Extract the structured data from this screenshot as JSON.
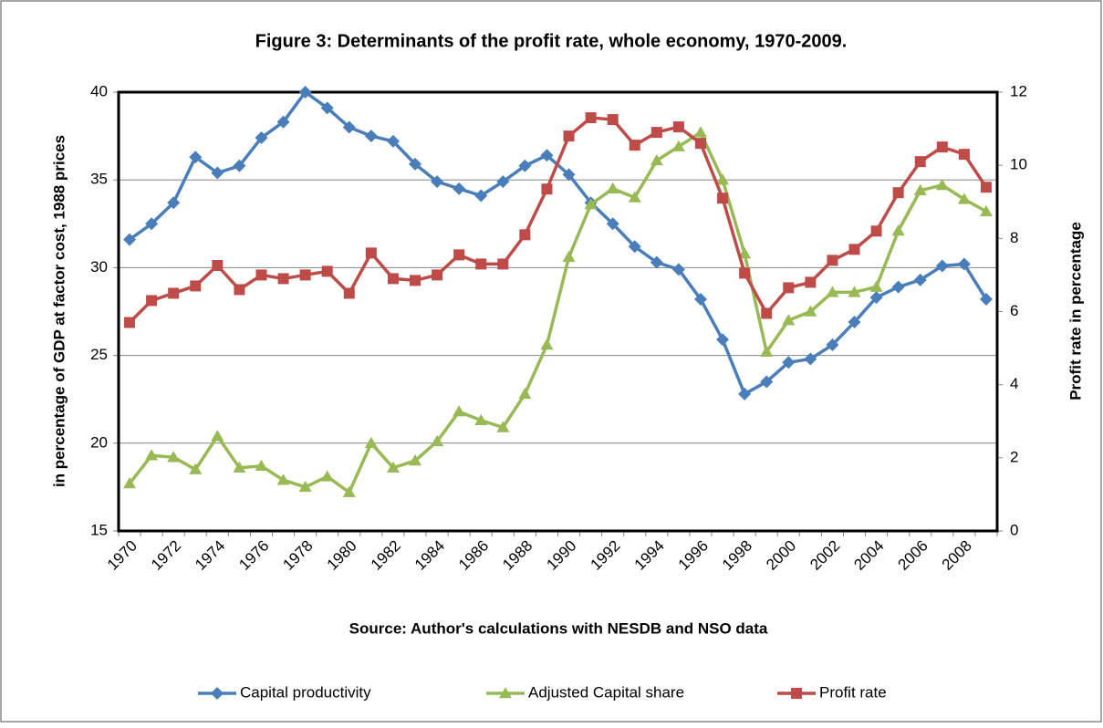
{
  "chart_data": {
    "type": "line",
    "title": "Figure 3: Determinants of the profit rate, whole economy, 1970-2009.",
    "y_label": "in percentage of GDP at factor cost, 1988 prices",
    "y2_label": "Profit rate in percentage",
    "source": "Source: Author's calculations with NESDB and NSO data",
    "categories": [
      "1970",
      null,
      "1972",
      null,
      "1974",
      null,
      "1976",
      null,
      "1978",
      null,
      "1980",
      null,
      "1982",
      null,
      "1984",
      null,
      "1986",
      null,
      "1988",
      null,
      "1990",
      null,
      "1992",
      null,
      "1994",
      null,
      "1996",
      null,
      "1998",
      null,
      "2000",
      null,
      "2002",
      null,
      "2004",
      null,
      "2006",
      null,
      "2008",
      null
    ],
    "ylim": [
      15,
      40
    ],
    "yticks": [
      15,
      20,
      25,
      30,
      35,
      40
    ],
    "y2lim": [
      0,
      12
    ],
    "y2ticks": [
      0,
      2,
      4,
      6,
      8,
      10,
      12
    ],
    "grid": true,
    "legend": "bottom",
    "series": [
      {
        "name": "Capital productivity",
        "color": "#4a7ebb",
        "marker": "diamond",
        "values": [
          31.6,
          32.5,
          33.7,
          36.3,
          35.4,
          35.8,
          37.4,
          38.3,
          40.0,
          39.1,
          38.0,
          37.5,
          37.2,
          35.9,
          34.9,
          34.5,
          34.1,
          34.9,
          35.8,
          36.4,
          35.3,
          33.7,
          32.5,
          31.2,
          30.3,
          29.9,
          28.2,
          25.9,
          22.8,
          23.5,
          24.6,
          24.8,
          25.6,
          26.9,
          28.3,
          28.9,
          29.3,
          30.1,
          30.2,
          28.2
        ]
      },
      {
        "name": "Adjusted Capital share",
        "color": "#98b954",
        "marker": "triangle",
        "values": [
          17.7,
          19.3,
          19.2,
          18.5,
          20.4,
          18.6,
          18.7,
          17.9,
          17.5,
          18.1,
          17.2,
          20.0,
          18.6,
          19.0,
          20.1,
          21.8,
          21.3,
          20.9,
          22.8,
          25.6,
          30.6,
          33.6,
          34.5,
          34.0,
          36.1,
          36.9,
          37.7,
          35.0,
          30.8,
          25.2,
          27.0,
          27.5,
          28.6,
          28.6,
          28.9,
          32.1,
          34.4,
          34.7,
          33.9,
          33.2
        ]
      },
      {
        "name": "Profit rate",
        "color": "#be4b48",
        "marker": "square",
        "axis": "y2",
        "values": [
          5.7,
          6.3,
          6.5,
          6.7,
          7.26,
          6.6,
          7.0,
          6.9,
          7.0,
          7.1,
          6.5,
          7.6,
          6.9,
          6.85,
          7.0,
          7.55,
          7.3,
          7.3,
          8.1,
          9.35,
          10.8,
          11.3,
          11.25,
          10.55,
          10.9,
          11.05,
          10.6,
          9.1,
          7.05,
          5.95,
          6.65,
          6.8,
          7.4,
          7.7,
          8.2,
          9.25,
          10.1,
          10.5,
          10.3,
          9.4
        ]
      }
    ]
  }
}
